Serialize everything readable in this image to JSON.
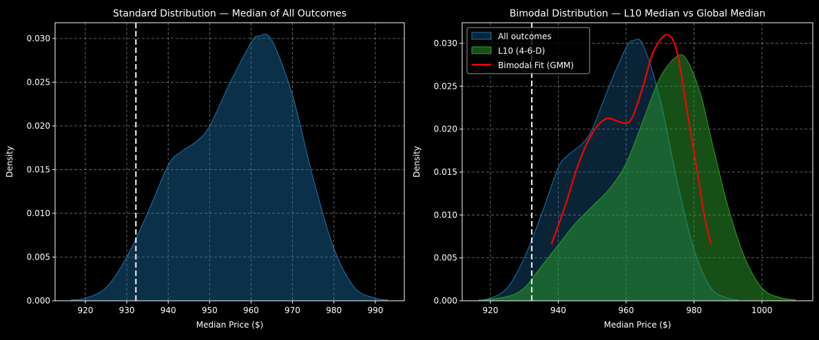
{
  "chart_data": [
    {
      "type": "area",
      "title": "Standard Distribution — Median of All Outcomes",
      "xlabel": "Median Price ($)",
      "ylabel": "Density",
      "xlim": [
        912.7,
        997
      ],
      "ylim": [
        0,
        0.0318
      ],
      "xticks": [
        920,
        930,
        940,
        950,
        960,
        970,
        980,
        990
      ],
      "yticks": [
        "0.000",
        "0.005",
        "0.010",
        "0.015",
        "0.020",
        "0.025",
        "0.030"
      ],
      "grid": true,
      "vline": 932.2,
      "series": [
        {
          "name": "All outcomes",
          "color": "#1f77b4",
          "fill_opacity": 0.4,
          "x": [
            916.5,
            920,
            925,
            930,
            935,
            940,
            943,
            947,
            950,
            955,
            960,
            962,
            965,
            970,
            975,
            980,
            985,
            990,
            993
          ],
          "y": [
            0.0001,
            0.0003,
            0.0015,
            0.005,
            0.01,
            0.0155,
            0.017,
            0.0183,
            0.02,
            0.025,
            0.0295,
            0.0303,
            0.0298,
            0.0235,
            0.014,
            0.006,
            0.0015,
            0.0003,
            0.0001
          ]
        }
      ]
    },
    {
      "type": "area",
      "title": "Bimodal Distribution — L10 Median vs Global Median",
      "xlabel": "Median Price ($)",
      "ylabel": "Density",
      "xlim": [
        911.7,
        1015
      ],
      "ylim": [
        0,
        0.0324
      ],
      "xticks": [
        920,
        940,
        960,
        980,
        1000
      ],
      "yticks": [
        "0.000",
        "0.005",
        "0.010",
        "0.015",
        "0.020",
        "0.025",
        "0.030"
      ],
      "grid": true,
      "vline": 932.2,
      "legend_position": "top-left",
      "series": [
        {
          "name": "All outcomes",
          "kind": "area",
          "color": "#1f77b4",
          "fill_opacity": 0.3,
          "x": [
            916.5,
            920,
            925,
            930,
            935,
            940,
            943,
            947,
            950,
            955,
            960,
            962,
            965,
            970,
            975,
            980,
            985,
            990,
            993
          ],
          "y": [
            0.0001,
            0.0003,
            0.0015,
            0.005,
            0.01,
            0.0155,
            0.017,
            0.0183,
            0.02,
            0.025,
            0.0295,
            0.0303,
            0.0298,
            0.0235,
            0.014,
            0.006,
            0.0015,
            0.0003,
            0.0001
          ]
        },
        {
          "name": "L10 (4-6-D)",
          "kind": "area",
          "color": "#2ca02c",
          "fill_opacity": 0.5,
          "x": [
            918,
            925,
            930,
            935,
            940,
            945,
            950,
            955,
            960,
            965,
            970,
            975,
            978,
            982,
            985,
            990,
            995,
            1000,
            1005,
            1010
          ],
          "y": [
            0.0001,
            0.0005,
            0.0015,
            0.004,
            0.0065,
            0.009,
            0.011,
            0.013,
            0.016,
            0.021,
            0.026,
            0.0285,
            0.028,
            0.024,
            0.019,
            0.011,
            0.005,
            0.0015,
            0.0004,
            0.0001
          ]
        },
        {
          "name": "Bimodal Fit (GMM)",
          "kind": "line",
          "color": "#ff0000",
          "x": [
            938,
            942,
            946,
            950,
            954,
            957,
            960,
            962,
            965,
            968,
            972,
            975,
            978,
            981,
            983,
            985
          ],
          "y": [
            0.0066,
            0.011,
            0.016,
            0.0195,
            0.0212,
            0.021,
            0.0207,
            0.0215,
            0.025,
            0.029,
            0.031,
            0.029,
            0.022,
            0.015,
            0.01,
            0.0066
          ]
        }
      ]
    }
  ]
}
